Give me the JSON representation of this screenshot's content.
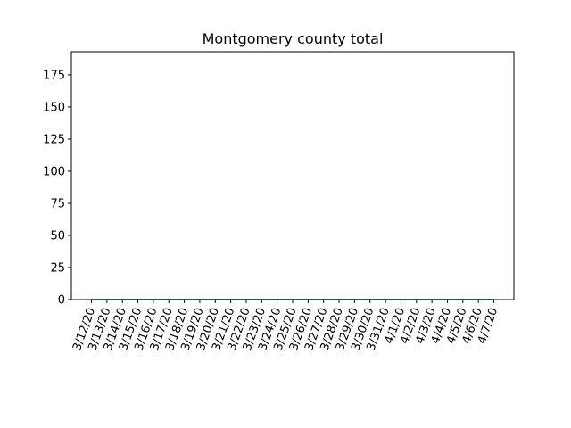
{
  "chart_data": {
    "type": "line",
    "title": "Montgomery county total",
    "xlabel": "",
    "ylabel": "",
    "x": [
      "3/12/20",
      "3/13/20",
      "3/14/20",
      "3/15/20",
      "3/16/20",
      "3/17/20",
      "3/18/20",
      "3/19/20",
      "3/20/20",
      "3/21/20",
      "3/22/20",
      "3/23/20",
      "3/24/20",
      "3/25/20",
      "3/26/20",
      "3/27/20",
      "3/28/20",
      "3/29/20",
      "3/30/20",
      "3/31/20",
      "4/1/20",
      "4/2/20",
      "4/3/20",
      "4/4/20",
      "4/5/20",
      "4/6/20",
      "4/7/20"
    ],
    "series": [
      {
        "values": [
          0,
          0,
          0,
          0,
          0,
          0,
          0,
          0,
          0,
          0,
          0,
          0,
          0,
          0,
          0,
          0,
          0,
          0,
          0,
          0,
          0,
          0,
          0,
          0,
          0,
          0,
          0
        ],
        "color": "#1f77b4"
      },
      {
        "values": [
          0,
          0,
          0,
          0,
          0,
          0,
          0,
          0,
          0,
          0,
          0,
          0,
          0,
          0,
          0,
          0,
          0,
          0,
          0,
          0,
          0,
          0,
          0,
          0,
          0,
          0,
          0
        ],
        "color": "#2ca02c"
      }
    ],
    "ylim": [
      0,
      193
    ],
    "yticks": [
      0,
      25,
      50,
      75,
      100,
      125,
      150,
      175
    ],
    "grid": false,
    "legend": "none"
  }
}
